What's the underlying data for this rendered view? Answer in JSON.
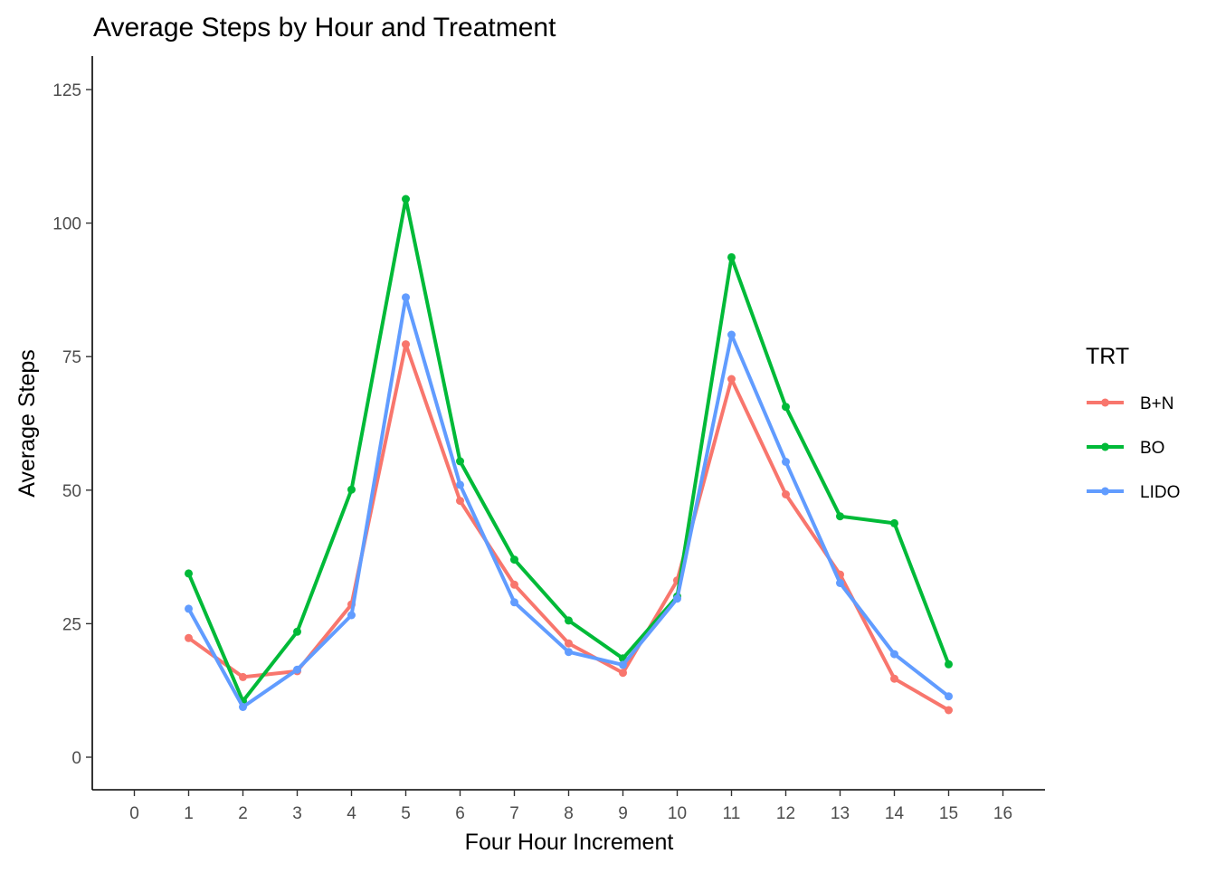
{
  "chart_data": {
    "type": "line",
    "title": "Average Steps by Hour and Treatment",
    "xlabel": "Four Hour Increment",
    "ylabel": "Average Steps",
    "x": [
      1,
      2,
      3,
      4,
      5,
      6,
      7,
      8,
      9,
      10,
      11,
      12,
      13,
      14,
      15
    ],
    "xlim": [
      0,
      16
    ],
    "ylim": [
      0,
      125
    ],
    "x_ticks": [
      0,
      1,
      2,
      3,
      4,
      5,
      6,
      7,
      8,
      9,
      10,
      11,
      12,
      13,
      14,
      15,
      16
    ],
    "y_ticks": [
      0,
      25,
      50,
      75,
      100,
      125
    ],
    "grid": false,
    "legend": {
      "title": "TRT",
      "placement": "right"
    },
    "series": [
      {
        "name": "B+N",
        "color": "#F8766D",
        "values": [
          22.3,
          15.0,
          16.1,
          28.6,
          77.3,
          48.0,
          32.3,
          21.3,
          15.8,
          33.1,
          70.8,
          49.2,
          34.2,
          14.7,
          8.8
        ]
      },
      {
        "name": "BO",
        "color": "#00BA38",
        "values": [
          34.4,
          10.5,
          23.5,
          50.1,
          104.5,
          55.4,
          37.0,
          25.6,
          18.5,
          30.1,
          93.6,
          65.6,
          45.1,
          43.8,
          17.4
        ]
      },
      {
        "name": "LIDO",
        "color": "#619CFF",
        "values": [
          27.8,
          9.4,
          16.4,
          26.6,
          86.1,
          51.0,
          29.0,
          19.7,
          17.3,
          29.7,
          79.1,
          55.3,
          32.6,
          19.3,
          11.4
        ]
      }
    ]
  }
}
